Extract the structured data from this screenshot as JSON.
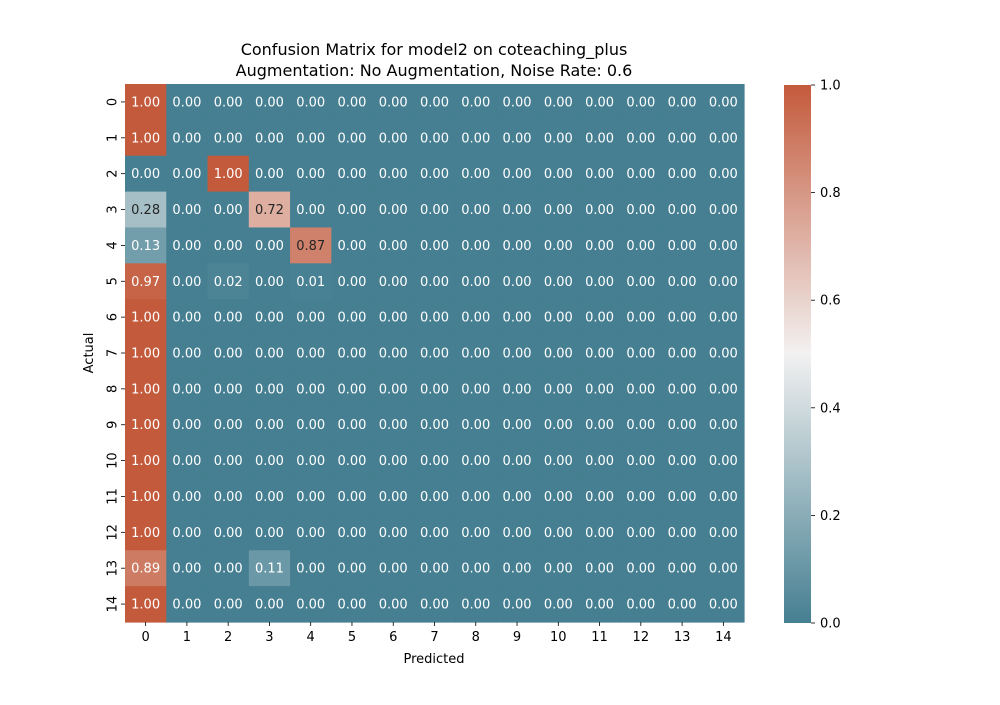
{
  "chart_data": {
    "type": "heatmap",
    "title": "Confusion Matrix for model2 on coteaching_plus",
    "subtitle": "Augmentation: No Augmentation, Noise Rate: 0.6",
    "xlabel": "Predicted",
    "ylabel": "Actual",
    "x_categories": [
      "0",
      "1",
      "2",
      "3",
      "4",
      "5",
      "6",
      "7",
      "8",
      "9",
      "10",
      "11",
      "12",
      "13",
      "14"
    ],
    "y_categories": [
      "0",
      "1",
      "2",
      "3",
      "4",
      "5",
      "6",
      "7",
      "8",
      "9",
      "10",
      "11",
      "12",
      "13",
      "14"
    ],
    "values": [
      [
        1.0,
        0,
        0,
        0,
        0,
        0,
        0,
        0,
        0,
        0,
        0,
        0,
        0,
        0,
        0
      ],
      [
        1.0,
        0,
        0,
        0,
        0,
        0,
        0,
        0,
        0,
        0,
        0,
        0,
        0,
        0,
        0
      ],
      [
        0,
        0,
        1.0,
        0,
        0,
        0,
        0,
        0,
        0,
        0,
        0,
        0,
        0,
        0,
        0
      ],
      [
        0.28,
        0,
        0,
        0.72,
        0,
        0,
        0,
        0,
        0,
        0,
        0,
        0,
        0,
        0,
        0
      ],
      [
        0.13,
        0,
        0,
        0,
        0.87,
        0,
        0,
        0,
        0,
        0,
        0,
        0,
        0,
        0,
        0
      ],
      [
        0.97,
        0,
        0.02,
        0,
        0.01,
        0,
        0,
        0,
        0,
        0,
        0,
        0,
        0,
        0,
        0
      ],
      [
        1.0,
        0,
        0,
        0,
        0,
        0,
        0,
        0,
        0,
        0,
        0,
        0,
        0,
        0,
        0
      ],
      [
        1.0,
        0,
        0,
        0,
        0,
        0,
        0,
        0,
        0,
        0,
        0,
        0,
        0,
        0,
        0
      ],
      [
        1.0,
        0,
        0,
        0,
        0,
        0,
        0,
        0,
        0,
        0,
        0,
        0,
        0,
        0,
        0
      ],
      [
        1.0,
        0,
        0,
        0,
        0,
        0,
        0,
        0,
        0,
        0,
        0,
        0,
        0,
        0,
        0
      ],
      [
        1.0,
        0,
        0,
        0,
        0,
        0,
        0,
        0,
        0,
        0,
        0,
        0,
        0,
        0,
        0
      ],
      [
        1.0,
        0,
        0,
        0,
        0,
        0,
        0,
        0,
        0,
        0,
        0,
        0,
        0,
        0,
        0
      ],
      [
        1.0,
        0,
        0,
        0,
        0,
        0,
        0,
        0,
        0,
        0,
        0,
        0,
        0,
        0,
        0
      ],
      [
        0.89,
        0,
        0,
        0.11,
        0,
        0,
        0,
        0,
        0,
        0,
        0,
        0,
        0,
        0,
        0
      ],
      [
        1.0,
        0,
        0,
        0,
        0,
        0,
        0,
        0,
        0,
        0,
        0,
        0,
        0,
        0,
        0
      ]
    ],
    "value_format": "0.00",
    "colorbar": {
      "vmin": 0.0,
      "vmax": 1.0,
      "ticks": [
        "0.0",
        "0.2",
        "0.4",
        "0.6",
        "0.8",
        "1.0"
      ],
      "color_low": "#457f91",
      "color_mid": "#f2f1f1",
      "color_high": "#c45a3c"
    }
  }
}
